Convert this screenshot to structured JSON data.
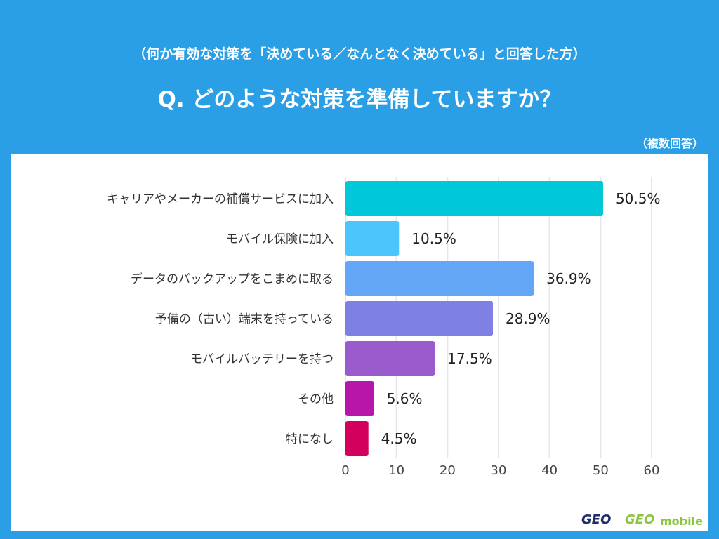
{
  "header": {
    "subtitle": "（何か有効な対策を「決めている／なんとなく決めている」と回答した方）",
    "title": "Q. どのような対策を準備していますか？",
    "note": "（複数回答）"
  },
  "chart_data": {
    "type": "bar",
    "orientation": "horizontal",
    "categories": [
      "キャリアやメーカーの補償サービスに加入",
      "モバイル保険に加入",
      "データのバックアップをこまめに取る",
      "予備の（古い）端末を持っている",
      "モバイルバッテリーを持つ",
      "その他",
      "特になし"
    ],
    "values": [
      50.5,
      10.5,
      36.9,
      28.9,
      17.5,
      5.6,
      4.5
    ],
    "value_labels": [
      "50.5%",
      "10.5%",
      "36.9%",
      "28.9%",
      "17.5%",
      "5.6%",
      "4.5%"
    ],
    "colors": [
      "#00c8d8",
      "#4cc4fc",
      "#64a6f6",
      "#7f80e4",
      "#9a5bcc",
      "#b816a8",
      "#d4005e"
    ],
    "xlim": [
      0,
      60
    ],
    "xticks": [
      "0",
      "10",
      "20",
      "30",
      "40",
      "50",
      "60"
    ],
    "grid": true
  },
  "logos": {
    "geo": "GEO",
    "geo_mobile": "GEO mobile"
  }
}
